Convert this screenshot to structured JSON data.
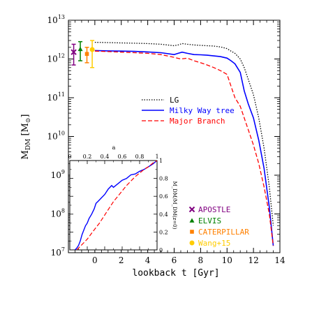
{
  "chart_data": {
    "type": "line",
    "xlabel": "lookback t [Gyr]",
    "ylabel": "M",
    "ylabel_sub": "DM",
    "ylabel_unit_open": " [M",
    "ylabel_unit_sun": "⊙",
    "ylabel_unit_close": "]",
    "xlim": [
      -2,
      14
    ],
    "ylim": [
      10000000,
      10000000000000
    ],
    "yscale": "log",
    "xticks": [
      0,
      2,
      4,
      6,
      8,
      10,
      12,
      14
    ],
    "xtick_labels": [
      "0",
      "2",
      "4",
      "6",
      "8",
      "10",
      "12",
      "14"
    ],
    "yticks": [
      10000000,
      100000000,
      1000000000,
      10000000000,
      100000000000,
      1000000000000,
      10000000000000
    ],
    "ytick_base": [
      "10",
      "10",
      "10",
      "10",
      "10",
      "10",
      "10"
    ],
    "ytick_exp": [
      "7",
      "8",
      "9",
      "10",
      "11",
      "12",
      "13"
    ],
    "series": [
      {
        "name": "LG",
        "color": "#000000",
        "dash": "dotted",
        "x": [
          0,
          1,
          2,
          3,
          4,
          5,
          6,
          6.3,
          6.6,
          7.0,
          7.5,
          8.0,
          8.5,
          9.0,
          9.5,
          10.0,
          10.3,
          10.6,
          11.0,
          11.3,
          11.6,
          12.0,
          12.4,
          12.8,
          13.2,
          13.5
        ],
        "y": [
          2700000000000.0,
          2650000000000.0,
          2600000000000.0,
          2550000000000.0,
          2500000000000.0,
          2400000000000.0,
          2200000000000.0,
          2300000000000.0,
          2500000000000.0,
          2400000000000.0,
          2300000000000.0,
          2250000000000.0,
          2200000000000.0,
          2150000000000.0,
          2050000000000.0,
          1850000000000.0,
          1600000000000.0,
          1400000000000.0,
          1000000000000.0,
          600000000000.0,
          300000000000.0,
          120000000000.0,
          30000000000.0,
          5000000000.0,
          500000000.0,
          50000000.0
        ]
      },
      {
        "name": "Milky Way tree",
        "color": "#0000ff",
        "dash": "solid",
        "x": [
          0,
          1,
          2,
          3,
          4,
          5,
          6,
          6.3,
          6.6,
          7.0,
          7.5,
          8.0,
          8.5,
          9.0,
          9.5,
          10.0,
          10.3,
          10.6,
          11.0,
          11.3,
          11.6,
          12.0,
          12.4,
          12.8,
          13.2,
          13.5
        ],
        "y": [
          1650000000000.0,
          1620000000000.0,
          1600000000000.0,
          1570000000000.0,
          1520000000000.0,
          1450000000000.0,
          1300000000000.0,
          1400000000000.0,
          1500000000000.0,
          1400000000000.0,
          1300000000000.0,
          1280000000000.0,
          1250000000000.0,
          1200000000000.0,
          1150000000000.0,
          1050000000000.0,
          900000000000.0,
          750000000000.0,
          450000000000.0,
          150000000000.0,
          70000000000.0,
          30000000000.0,
          8000000000.0,
          1500000000.0,
          150000000.0,
          15000000.0
        ]
      },
      {
        "name": "Major Branch",
        "color": "#ff0000",
        "dash": "dashed",
        "x": [
          0,
          1,
          2,
          3,
          4,
          5,
          6,
          6.5,
          7.0,
          7.5,
          8.0,
          8.5,
          9.0,
          9.5,
          10.0,
          10.3,
          10.6,
          11.0,
          11.3,
          11.6,
          12.0,
          12.4,
          12.8,
          13.2,
          13.5
        ],
        "y": [
          1600000000000.0,
          1550000000000.0,
          1500000000000.0,
          1450000000000.0,
          1400000000000.0,
          1300000000000.0,
          1100000000000.0,
          1000000000000.0,
          1050000000000.0,
          900000000000.0,
          800000000000.0,
          700000000000.0,
          600000000000.0,
          500000000000.0,
          400000000000.0,
          200000000000.0,
          100000000000.0,
          60000000000.0,
          30000000000.0,
          15000000000.0,
          6000000000.0,
          2000000000.0,
          500000000.0,
          100000000.0,
          15000000.0
        ]
      }
    ],
    "legend": {
      "position": "center-right",
      "entries": [
        "LG",
        "Milky Way tree",
        "Major Branch"
      ]
    },
    "observations": [
      {
        "name": "APOSTLE",
        "color": "#800080",
        "marker": "x",
        "x": -1.6,
        "y": 1500000000000.0,
        "low": 700000000000.0,
        "high": 2400000000000.0
      },
      {
        "name": "ELVIS",
        "color": "#008000",
        "marker": "triangle",
        "x": -1.1,
        "y": 1800000000000.0,
        "low": 900000000000.0,
        "high": 2800000000000.0
      },
      {
        "name": "CATERPILLAR",
        "color": "#ff8000",
        "marker": "square",
        "x": -0.6,
        "y": 1350000000000.0,
        "low": 800000000000.0,
        "high": 2000000000000.0
      },
      {
        "name": "Wang+15",
        "color": "#ffcc00",
        "marker": "circle",
        "x": -0.2,
        "y": 1750000000000.0,
        "low": 600000000000.0,
        "high": 3000000000000.0
      }
    ],
    "inset": {
      "type": "line",
      "xlim": [
        0,
        1
      ],
      "ylim": [
        0,
        1
      ],
      "top_axis_label": "a",
      "xticks": [
        0,
        0.2,
        0.4,
        0.6,
        0.8,
        1
      ],
      "xtick_labels": [
        "0",
        "0.2",
        "0.4",
        "0.6",
        "0.8",
        "1"
      ],
      "yticks": [
        0,
        0.2,
        0.4,
        0.6,
        0.8,
        1
      ],
      "ytick_labels": [
        "0",
        "0.2",
        "0.4",
        "0.6",
        "0.8",
        "1"
      ],
      "right_axis_label": "M_DM/M_DM(z=0)",
      "series": [
        {
          "name": "Milky Way tree",
          "color": "#0000ff",
          "dash": "solid",
          "x": [
            0.06,
            0.08,
            0.1,
            0.12,
            0.14,
            0.16,
            0.18,
            0.2,
            0.22,
            0.25,
            0.28,
            0.3,
            0.33,
            0.36,
            0.4,
            0.44,
            0.48,
            0.5,
            0.55,
            0.6,
            0.65,
            0.7,
            0.75,
            0.8,
            0.85,
            0.9,
            0.95,
            1.0
          ],
          "y": [
            0.0,
            0.02,
            0.05,
            0.1,
            0.17,
            0.22,
            0.27,
            0.3,
            0.35,
            0.4,
            0.46,
            0.52,
            0.55,
            0.58,
            0.62,
            0.68,
            0.72,
            0.7,
            0.74,
            0.78,
            0.8,
            0.84,
            0.85,
            0.88,
            0.9,
            0.93,
            0.96,
            1.0
          ]
        },
        {
          "name": "Major Branch",
          "color": "#ff0000",
          "dash": "dashed",
          "x": [
            0.08,
            0.1,
            0.12,
            0.15,
            0.18,
            0.2,
            0.23,
            0.26,
            0.3,
            0.34,
            0.38,
            0.42,
            0.46,
            0.5,
            0.55,
            0.6,
            0.65,
            0.7,
            0.75,
            0.8,
            0.85,
            0.9,
            0.95,
            1.0
          ],
          "y": [
            0.0,
            0.02,
            0.04,
            0.07,
            0.1,
            0.12,
            0.16,
            0.2,
            0.25,
            0.3,
            0.36,
            0.42,
            0.48,
            0.54,
            0.6,
            0.66,
            0.72,
            0.77,
            0.82,
            0.86,
            0.9,
            0.93,
            0.97,
            1.0
          ]
        }
      ]
    }
  }
}
